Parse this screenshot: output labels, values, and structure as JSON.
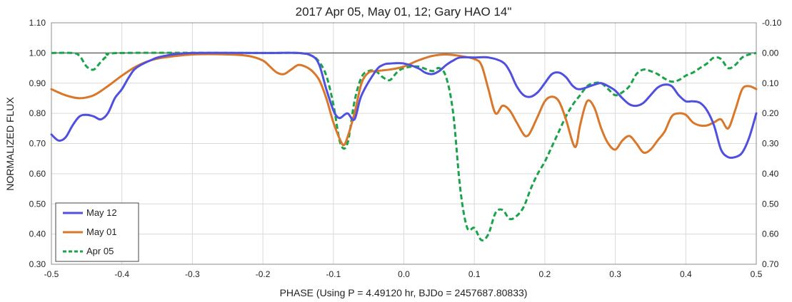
{
  "chart_data": {
    "type": "line",
    "title": "2017 Apr 05, May 01, 12; Gary HAO 14\"",
    "xlabel": "PHASE (Using P = 4.49120 hr, BJDo = 2457687.80833)",
    "ylabel": "NORMALIZED FLUX",
    "xlim": [
      -0.5,
      0.5
    ],
    "ylim": [
      0.3,
      1.1
    ],
    "y2lim": [
      -0.1,
      0.7
    ],
    "x_ticks": [
      "-0.5",
      "-0.4",
      "-0.3",
      "-0.2",
      "-0.1",
      "0.0",
      "0.1",
      "0.2",
      "0.3",
      "0.4",
      "0.5"
    ],
    "y_ticks": [
      "0.30",
      "0.40",
      "0.50",
      "0.60",
      "0.70",
      "0.80",
      "0.90",
      "1.00",
      "1.10"
    ],
    "y2_ticks": [
      "0.70",
      "0.60",
      "0.50",
      "0.40",
      "0.30",
      "0.20",
      "0.10",
      "0.00",
      "-0.10"
    ],
    "grid": true,
    "reference_line": 1.0,
    "legend_position": "bottom-left",
    "series": [
      {
        "name": "May 12",
        "color": "#4f4fe0",
        "style": "solid",
        "points": [
          [
            -0.5,
            0.73
          ],
          [
            -0.49,
            0.71
          ],
          [
            -0.48,
            0.72
          ],
          [
            -0.47,
            0.76
          ],
          [
            -0.46,
            0.79
          ],
          [
            -0.45,
            0.795
          ],
          [
            -0.44,
            0.79
          ],
          [
            -0.43,
            0.78
          ],
          [
            -0.42,
            0.8
          ],
          [
            -0.41,
            0.85
          ],
          [
            -0.4,
            0.88
          ],
          [
            -0.39,
            0.92
          ],
          [
            -0.38,
            0.95
          ],
          [
            -0.36,
            0.975
          ],
          [
            -0.34,
            0.99
          ],
          [
            -0.3,
            1.0
          ],
          [
            -0.2,
            1.0
          ],
          [
            -0.15,
            1.0
          ],
          [
            -0.13,
            0.99
          ],
          [
            -0.12,
            0.96
          ],
          [
            -0.11,
            0.88
          ],
          [
            -0.1,
            0.81
          ],
          [
            -0.095,
            0.79
          ],
          [
            -0.09,
            0.785
          ],
          [
            -0.08,
            0.8
          ],
          [
            -0.07,
            0.78
          ],
          [
            -0.06,
            0.86
          ],
          [
            -0.04,
            0.94
          ],
          [
            -0.03,
            0.96
          ],
          [
            -0.02,
            0.965
          ],
          [
            0.0,
            0.965
          ],
          [
            0.02,
            0.95
          ],
          [
            0.03,
            0.935
          ],
          [
            0.04,
            0.93
          ],
          [
            0.05,
            0.94
          ],
          [
            0.06,
            0.96
          ],
          [
            0.07,
            0.975
          ],
          [
            0.08,
            0.985
          ],
          [
            0.1,
            0.985
          ],
          [
            0.12,
            0.985
          ],
          [
            0.14,
            0.97
          ],
          [
            0.15,
            0.94
          ],
          [
            0.16,
            0.89
          ],
          [
            0.17,
            0.86
          ],
          [
            0.18,
            0.855
          ],
          [
            0.19,
            0.87
          ],
          [
            0.2,
            0.9
          ],
          [
            0.21,
            0.93
          ],
          [
            0.22,
            0.935
          ],
          [
            0.23,
            0.92
          ],
          [
            0.24,
            0.89
          ],
          [
            0.25,
            0.88
          ],
          [
            0.27,
            0.895
          ],
          [
            0.28,
            0.9
          ],
          [
            0.29,
            0.89
          ],
          [
            0.3,
            0.875
          ],
          [
            0.31,
            0.85
          ],
          [
            0.32,
            0.83
          ],
          [
            0.33,
            0.825
          ],
          [
            0.34,
            0.835
          ],
          [
            0.35,
            0.86
          ],
          [
            0.36,
            0.885
          ],
          [
            0.37,
            0.895
          ],
          [
            0.38,
            0.89
          ],
          [
            0.39,
            0.86
          ],
          [
            0.4,
            0.84
          ],
          [
            0.41,
            0.84
          ],
          [
            0.42,
            0.835
          ],
          [
            0.43,
            0.81
          ],
          [
            0.44,
            0.76
          ],
          [
            0.45,
            0.68
          ],
          [
            0.46,
            0.655
          ],
          [
            0.47,
            0.655
          ],
          [
            0.48,
            0.67
          ],
          [
            0.49,
            0.72
          ],
          [
            0.5,
            0.8
          ]
        ]
      },
      {
        "name": "May 01",
        "color": "#d9772a",
        "style": "solid",
        "points": [
          [
            -0.5,
            0.88
          ],
          [
            -0.48,
            0.86
          ],
          [
            -0.46,
            0.85
          ],
          [
            -0.44,
            0.86
          ],
          [
            -0.42,
            0.89
          ],
          [
            -0.4,
            0.925
          ],
          [
            -0.38,
            0.955
          ],
          [
            -0.36,
            0.975
          ],
          [
            -0.34,
            0.985
          ],
          [
            -0.3,
            0.995
          ],
          [
            -0.25,
            0.995
          ],
          [
            -0.22,
            0.99
          ],
          [
            -0.2,
            0.975
          ],
          [
            -0.19,
            0.955
          ],
          [
            -0.18,
            0.935
          ],
          [
            -0.17,
            0.93
          ],
          [
            -0.16,
            0.945
          ],
          [
            -0.15,
            0.96
          ],
          [
            -0.14,
            0.955
          ],
          [
            -0.13,
            0.94
          ],
          [
            -0.12,
            0.91
          ],
          [
            -0.11,
            0.85
          ],
          [
            -0.1,
            0.77
          ],
          [
            -0.09,
            0.71
          ],
          [
            -0.085,
            0.695
          ],
          [
            -0.08,
            0.72
          ],
          [
            -0.07,
            0.8
          ],
          [
            -0.06,
            0.9
          ],
          [
            -0.05,
            0.935
          ],
          [
            -0.04,
            0.94
          ],
          [
            -0.02,
            0.945
          ],
          [
            0.0,
            0.955
          ],
          [
            0.02,
            0.975
          ],
          [
            0.04,
            0.99
          ],
          [
            0.06,
            0.995
          ],
          [
            0.08,
            0.99
          ],
          [
            0.1,
            0.98
          ],
          [
            0.11,
            0.96
          ],
          [
            0.12,
            0.88
          ],
          [
            0.13,
            0.8
          ],
          [
            0.14,
            0.825
          ],
          [
            0.15,
            0.81
          ],
          [
            0.16,
            0.77
          ],
          [
            0.17,
            0.73
          ],
          [
            0.175,
            0.725
          ],
          [
            0.18,
            0.74
          ],
          [
            0.19,
            0.79
          ],
          [
            0.2,
            0.84
          ],
          [
            0.21,
            0.855
          ],
          [
            0.22,
            0.84
          ],
          [
            0.23,
            0.78
          ],
          [
            0.24,
            0.7
          ],
          [
            0.245,
            0.695
          ],
          [
            0.25,
            0.76
          ],
          [
            0.26,
            0.84
          ],
          [
            0.27,
            0.82
          ],
          [
            0.28,
            0.75
          ],
          [
            0.29,
            0.7
          ],
          [
            0.3,
            0.68
          ],
          [
            0.31,
            0.71
          ],
          [
            0.32,
            0.725
          ],
          [
            0.33,
            0.7
          ],
          [
            0.34,
            0.67
          ],
          [
            0.35,
            0.68
          ],
          [
            0.36,
            0.71
          ],
          [
            0.37,
            0.74
          ],
          [
            0.38,
            0.79
          ],
          [
            0.39,
            0.8
          ],
          [
            0.4,
            0.795
          ],
          [
            0.41,
            0.77
          ],
          [
            0.42,
            0.76
          ],
          [
            0.43,
            0.76
          ],
          [
            0.44,
            0.77
          ],
          [
            0.45,
            0.78
          ],
          [
            0.46,
            0.75
          ],
          [
            0.47,
            0.81
          ],
          [
            0.48,
            0.88
          ],
          [
            0.49,
            0.89
          ],
          [
            0.5,
            0.88
          ]
        ]
      },
      {
        "name": "Apr 05",
        "color": "#1aa34a",
        "style": "dashed",
        "points": [
          [
            -0.5,
            1.0
          ],
          [
            -0.47,
            1.0
          ],
          [
            -0.46,
            0.99
          ],
          [
            -0.45,
            0.955
          ],
          [
            -0.44,
            0.945
          ],
          [
            -0.43,
            0.97
          ],
          [
            -0.42,
            0.99
          ],
          [
            -0.4,
            1.0
          ],
          [
            -0.2,
            1.0
          ],
          [
            -0.15,
            1.0
          ],
          [
            -0.13,
            0.99
          ],
          [
            -0.12,
            0.97
          ],
          [
            -0.11,
            0.925
          ],
          [
            -0.1,
            0.83
          ],
          [
            -0.09,
            0.7
          ],
          [
            -0.08,
            0.7
          ],
          [
            -0.07,
            0.84
          ],
          [
            -0.06,
            0.92
          ],
          [
            -0.05,
            0.94
          ],
          [
            -0.04,
            0.94
          ],
          [
            -0.03,
            0.92
          ],
          [
            -0.02,
            0.91
          ],
          [
            -0.01,
            0.935
          ],
          [
            0.0,
            0.95
          ],
          [
            0.02,
            0.955
          ],
          [
            0.04,
            0.94
          ],
          [
            0.05,
            0.95
          ],
          [
            0.06,
            0.92
          ],
          [
            0.07,
            0.8
          ],
          [
            0.08,
            0.55
          ],
          [
            0.09,
            0.42
          ],
          [
            0.1,
            0.42
          ],
          [
            0.11,
            0.38
          ],
          [
            0.12,
            0.4
          ],
          [
            0.13,
            0.47
          ],
          [
            0.14,
            0.48
          ],
          [
            0.15,
            0.45
          ],
          [
            0.16,
            0.46
          ],
          [
            0.17,
            0.49
          ],
          [
            0.18,
            0.55
          ],
          [
            0.19,
            0.6
          ],
          [
            0.2,
            0.64
          ],
          [
            0.21,
            0.69
          ],
          [
            0.22,
            0.74
          ],
          [
            0.23,
            0.79
          ],
          [
            0.24,
            0.83
          ],
          [
            0.25,
            0.86
          ],
          [
            0.26,
            0.89
          ],
          [
            0.27,
            0.9
          ],
          [
            0.28,
            0.9
          ],
          [
            0.29,
            0.88
          ],
          [
            0.3,
            0.86
          ],
          [
            0.31,
            0.87
          ],
          [
            0.32,
            0.89
          ],
          [
            0.33,
            0.93
          ],
          [
            0.34,
            0.945
          ],
          [
            0.35,
            0.94
          ],
          [
            0.36,
            0.93
          ],
          [
            0.37,
            0.915
          ],
          [
            0.38,
            0.905
          ],
          [
            0.39,
            0.91
          ],
          [
            0.4,
            0.925
          ],
          [
            0.41,
            0.935
          ],
          [
            0.42,
            0.95
          ],
          [
            0.43,
            0.965
          ],
          [
            0.44,
            0.985
          ],
          [
            0.45,
            0.98
          ],
          [
            0.46,
            0.95
          ],
          [
            0.47,
            0.96
          ],
          [
            0.48,
            0.985
          ],
          [
            0.49,
            0.995
          ],
          [
            0.5,
            1.0
          ]
        ]
      }
    ]
  }
}
